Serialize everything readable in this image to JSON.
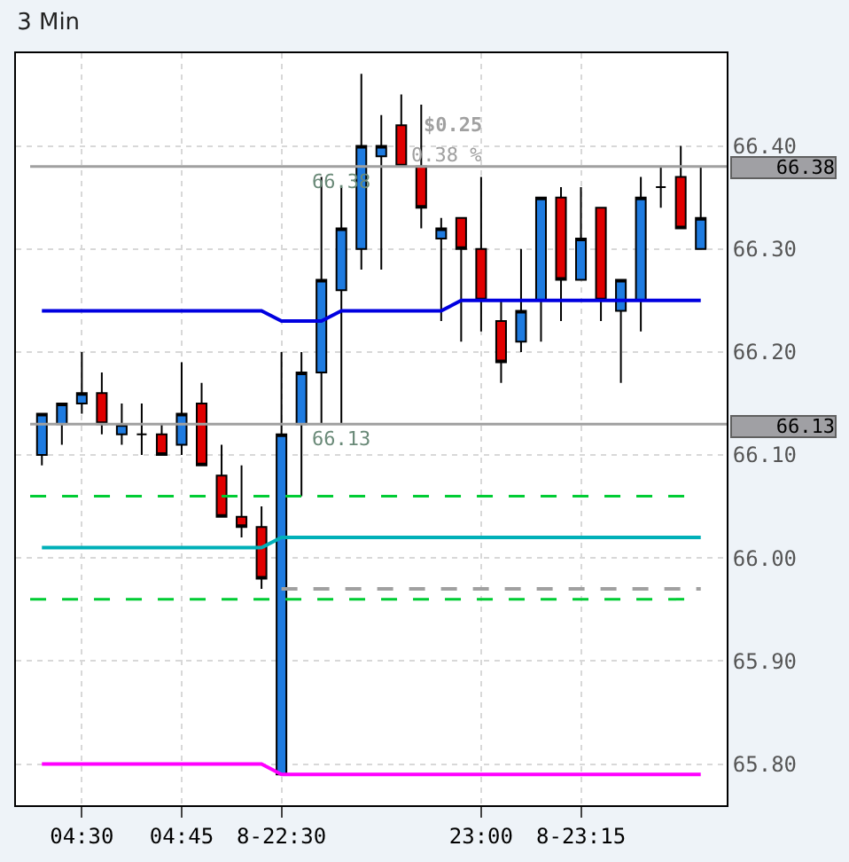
{
  "chart_data": {
    "type": "candlestick",
    "title": "3 Min",
    "categories": [
      null,
      null,
      "04:30",
      null,
      null,
      null,
      null,
      "04:45",
      null,
      null,
      null,
      null,
      "8-22:30",
      null,
      null,
      null,
      null,
      null,
      null,
      null,
      null,
      null,
      "23:00",
      null,
      null,
      null,
      null,
      "8-23:15",
      null,
      null,
      null,
      null,
      null,
      null
    ],
    "ohlc": [
      [
        66.1,
        66.14,
        66.09,
        66.14
      ],
      [
        66.13,
        66.15,
        66.11,
        66.15
      ],
      [
        66.15,
        66.2,
        66.14,
        66.16
      ],
      [
        66.16,
        66.18,
        66.12,
        66.13
      ],
      [
        66.12,
        66.15,
        66.11,
        66.13
      ],
      [
        66.12,
        66.15,
        66.1,
        66.12
      ],
      [
        66.12,
        66.13,
        66.1,
        66.1
      ],
      [
        66.11,
        66.19,
        66.1,
        66.14
      ],
      [
        66.15,
        66.17,
        66.09,
        66.09
      ],
      [
        66.08,
        66.11,
        66.04,
        66.04
      ],
      [
        66.04,
        66.09,
        66.02,
        66.03
      ],
      [
        66.03,
        66.05,
        65.97,
        65.98
      ],
      [
        65.79,
        66.2,
        65.79,
        66.12
      ],
      [
        66.13,
        66.2,
        66.06,
        66.18
      ],
      [
        66.18,
        66.37,
        66.13,
        66.27
      ],
      [
        66.26,
        66.36,
        66.13,
        66.32
      ],
      [
        66.3,
        66.47,
        66.28,
        66.4
      ],
      [
        66.39,
        66.43,
        66.28,
        66.4
      ],
      [
        66.42,
        66.45,
        66.38,
        66.38
      ],
      [
        66.38,
        66.44,
        66.32,
        66.34
      ],
      [
        66.31,
        66.33,
        66.23,
        66.32
      ],
      [
        66.33,
        66.33,
        66.21,
        66.3
      ],
      [
        66.3,
        66.37,
        66.22,
        66.25
      ],
      [
        66.23,
        66.25,
        66.17,
        66.19
      ],
      [
        66.21,
        66.3,
        66.2,
        66.24
      ],
      [
        66.25,
        66.35,
        66.21,
        66.35
      ],
      [
        66.35,
        66.36,
        66.23,
        66.27
      ],
      [
        66.27,
        66.36,
        66.27,
        66.31
      ],
      [
        66.34,
        66.34,
        66.23,
        66.25
      ],
      [
        66.24,
        66.27,
        66.17,
        66.27
      ],
      [
        66.25,
        66.37,
        66.22,
        66.35
      ],
      [
        66.36,
        66.38,
        66.34,
        66.36
      ],
      [
        66.37,
        66.4,
        66.32,
        66.32
      ],
      [
        66.3,
        66.38,
        66.3,
        66.33
      ]
    ],
    "colors": [
      "#1e7be0",
      "#1e7be0",
      "#1e7be0",
      "#e00000",
      "#1e7be0",
      "#000000",
      "#e00000",
      "#1e7be0",
      "#e00000",
      "#e00000",
      "#e00000",
      "#e00000",
      "#1e7be0",
      "#1e7be0",
      "#1e7be0",
      "#1e7be0",
      "#1e7be0",
      "#1e7be0",
      "#e00000",
      "#e00000",
      "#1e7be0",
      "#e00000",
      "#e00000",
      "#e00000",
      "#1e7be0",
      "#1e7be0",
      "#e00000",
      "#1e7be0",
      "#e00000",
      "#1e7be0",
      "#1e7be0",
      "#000000",
      "#e00000",
      "#1e7be0"
    ],
    "series": [
      {
        "type": "line",
        "color": "#0000e0",
        "values": [
          66.24,
          66.24,
          66.24,
          66.24,
          66.24,
          66.24,
          66.24,
          66.24,
          66.24,
          66.24,
          66.24,
          66.24,
          66.23,
          66.23,
          66.23,
          66.24,
          66.24,
          66.24,
          66.24,
          66.24,
          66.24,
          66.25,
          66.25,
          66.25,
          66.25,
          66.25,
          66.25,
          66.25,
          66.25,
          66.25,
          66.25,
          66.25,
          66.25,
          66.25
        ]
      },
      {
        "type": "line",
        "color": "#00b0b8",
        "values": [
          66.01,
          66.01,
          66.01,
          66.01,
          66.01,
          66.01,
          66.01,
          66.01,
          66.01,
          66.01,
          66.01,
          66.01,
          66.02,
          66.02,
          66.02,
          66.02,
          66.02,
          66.02,
          66.02,
          66.02,
          66.02,
          66.02,
          66.02,
          66.02,
          66.02,
          66.02,
          66.02,
          66.02,
          66.02,
          66.02,
          66.02,
          66.02,
          66.02,
          66.02
        ]
      },
      {
        "type": "line",
        "color": "#ff00ff",
        "values": [
          65.8,
          65.8,
          65.8,
          65.8,
          65.8,
          65.8,
          65.8,
          65.8,
          65.8,
          65.8,
          65.8,
          65.8,
          65.79,
          65.79,
          65.79,
          65.79,
          65.79,
          65.79,
          65.79,
          65.79,
          65.79,
          65.79,
          65.79,
          65.79,
          65.79,
          65.79,
          65.79,
          65.79,
          65.79,
          65.79,
          65.79,
          65.79,
          65.79,
          65.79
        ]
      },
      {
        "type": "line",
        "color": "#a0a0a0",
        "line_style": "dashed",
        "values": [
          null,
          null,
          null,
          null,
          null,
          null,
          null,
          null,
          null,
          null,
          null,
          null,
          65.97,
          65.97,
          65.97,
          65.97,
          65.97,
          65.97,
          65.97,
          65.97,
          65.97,
          65.97,
          65.97,
          65.97,
          65.97,
          65.97,
          65.97,
          65.97,
          65.97,
          65.97,
          65.97,
          65.97,
          65.97,
          65.97
        ]
      }
    ],
    "ref_lines": [
      {
        "axis": "y",
        "value": 66.06,
        "color": "#00cc33",
        "line_style": "dashed"
      },
      {
        "axis": "y",
        "value": 65.96,
        "color": "#00cc33",
        "line_style": "dashed"
      },
      {
        "axis": "y",
        "value": 66.38,
        "label": "66.38",
        "color": "#a0a0a0"
      },
      {
        "axis": "y",
        "value": 66.13,
        "label": "66.13",
        "color": "#a0a0a0"
      }
    ],
    "annotations": [
      {
        "text": "66.38",
        "y": 66.38
      },
      {
        "text": "66.13",
        "y": 66.13
      },
      "$0.25",
      "0.38 %"
    ],
    "ylim": [
      65.76,
      66.49
    ],
    "yticks": [
      {
        "value": 65.8,
        "label": "65.80"
      },
      {
        "value": 65.9,
        "label": "65.90"
      },
      {
        "value": 66.0,
        "label": "66.00"
      },
      {
        "value": 66.1,
        "label": "66.10"
      },
      {
        "value": 66.2,
        "label": "66.20"
      },
      {
        "value": 66.3,
        "label": "66.30"
      },
      {
        "value": 66.4,
        "label": "66.40"
      }
    ],
    "grid": true
  }
}
